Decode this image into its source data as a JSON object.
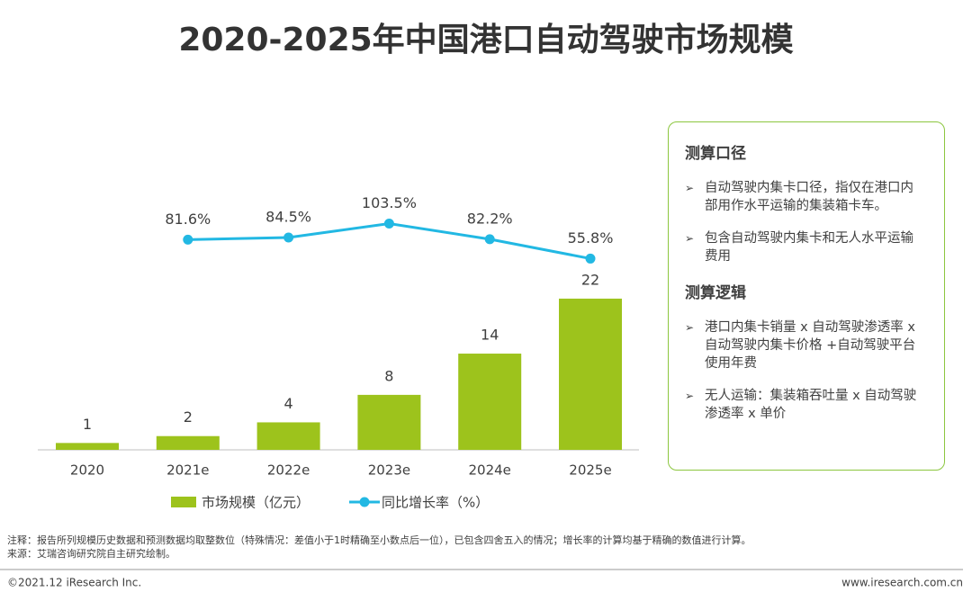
{
  "title": "2020-2025年中国港口自动驾驶市场规模",
  "chart_data": {
    "type": "combo",
    "categories": [
      "2020",
      "2021e",
      "2022e",
      "2023e",
      "2024e",
      "2025e"
    ],
    "series": [
      {
        "name": "市场规模（亿元）",
        "type": "bar",
        "color": "#9dc31c",
        "values": [
          1,
          2,
          4,
          8,
          14,
          22
        ]
      },
      {
        "name": "同比增长率（%）",
        "type": "line",
        "axis": "y2",
        "color": "#22b8e3",
        "values": [
          null,
          81.6,
          84.5,
          103.5,
          82.2,
          55.8
        ],
        "value_labels": [
          null,
          "81.6%",
          "84.5%",
          "103.5%",
          "82.2%",
          "55.8%"
        ]
      }
    ],
    "ylim": [
      0,
      25
    ],
    "y2lim": [
      0,
      120
    ],
    "legend": "bottom"
  },
  "panel": {
    "sections": [
      {
        "heading": "测算口径",
        "items": [
          "自动驾驶内集卡口径，指仅在港口内部用作水平运输的集装箱卡车。",
          "包含自动驾驶内集卡和无人水平运输费用"
        ]
      },
      {
        "heading": "测算逻辑",
        "items": [
          "港口内集卡销量 x 自动驾驶渗透率 x 自动驾驶内集卡价格 +自动驾驶平台使用年费",
          "无人运输：集装箱吞吐量 x 自动驾驶渗透率 x 单价"
        ]
      }
    ]
  },
  "notes": [
    "注释：报告所列规模历史数据和预测数据均取整数位（特殊情况：差值小于1时精确至小数点后一位），已包含四舍五入的情况；增长率的计算均基于精确的数值进行计算。",
    "来源：艾瑞咨询研究院自主研究绘制。"
  ],
  "footer": {
    "copyright": "©2021.12 iResearch Inc.",
    "website": "www.iresearch.com.cn"
  }
}
